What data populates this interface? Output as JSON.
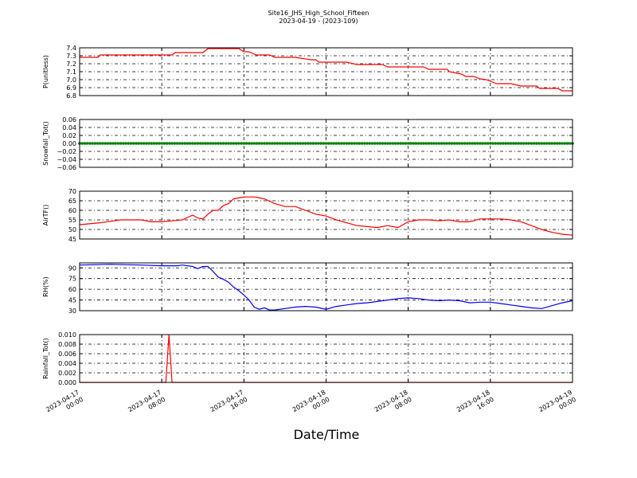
{
  "title_line1": "Site16_JHS_High_School_Fifteen",
  "title_line2": "2023-04-19 - (2023-109)",
  "xlabel": "Date/Time",
  "x_ticks": [
    [
      "2023-04-17",
      "00:00"
    ],
    [
      "2023-04-17",
      "08:00"
    ],
    [
      "2023-04-17",
      "16:00"
    ],
    [
      "2023-04-18",
      "00:00"
    ],
    [
      "2023-04-18",
      "08:00"
    ],
    [
      "2023-04-18",
      "16:00"
    ],
    [
      "2023-04-19",
      "00:00"
    ]
  ],
  "chart_data": [
    {
      "type": "line",
      "ylabel": "P(unitless)",
      "ylim": [
        6.8,
        7.4
      ],
      "yticks": [
        "7.4",
        "7.3",
        "7.2",
        "7.1",
        "7.0",
        "6.9",
        "6.8"
      ],
      "grid": true,
      "color": "#ff0000",
      "x_hours": [
        0,
        1.8,
        2,
        9,
        9.3,
        12,
        12.5,
        15.5,
        16,
        16.5,
        17.2,
        18.5,
        19,
        21,
        22.5,
        22.7,
        23,
        23.3,
        26,
        27,
        29.5,
        30,
        33.5,
        34,
        35.8,
        36,
        37.2,
        37.6,
        38.4,
        39,
        39.6,
        40.2,
        40.6,
        42,
        43,
        44.5,
        44.8,
        46.6,
        47,
        48
      ],
      "values": [
        7.28,
        7.28,
        7.31,
        7.31,
        7.34,
        7.34,
        7.39,
        7.39,
        7.35,
        7.35,
        7.31,
        7.31,
        7.28,
        7.28,
        7.25,
        7.25,
        7.25,
        7.22,
        7.22,
        7.19,
        7.19,
        7.16,
        7.16,
        7.13,
        7.13,
        7.1,
        7.07,
        7.04,
        7.04,
        7.01,
        7.0,
        6.97,
        6.95,
        6.95,
        6.92,
        6.92,
        6.89,
        6.89,
        6.86,
        6.86
      ]
    },
    {
      "type": "scatter",
      "ylabel": "Snowfall_Tot()",
      "ylim": [
        -0.06,
        0.06
      ],
      "yticks": [
        "0.06",
        "0.04",
        "0.02",
        "0.00",
        "−0.02",
        "−0.04",
        "−0.06"
      ],
      "grid": true,
      "color": "#008000",
      "value": 0.0,
      "x_range_hours": [
        0,
        48
      ]
    },
    {
      "type": "line",
      "ylabel": "AirTF()",
      "ylim": [
        45,
        70
      ],
      "yticks": [
        "70",
        "65",
        "60",
        "55",
        "50",
        "45"
      ],
      "grid": true,
      "color": "#ff0000",
      "x_hours": [
        0,
        2,
        4,
        6,
        7,
        8,
        9,
        10,
        11,
        11.5,
        12,
        12.5,
        13,
        13.5,
        14,
        14.5,
        15,
        15.5,
        16,
        16.5,
        17,
        17.5,
        18,
        19,
        20,
        21,
        22,
        23,
        24,
        25,
        26,
        27,
        28,
        29,
        30,
        31,
        32,
        33,
        34,
        35,
        36,
        37,
        38,
        39,
        40,
        41,
        42,
        43,
        44,
        45,
        46,
        47,
        48
      ],
      "values": [
        52.5,
        53.5,
        55,
        55,
        54,
        54,
        54.5,
        55,
        57.5,
        56,
        55.5,
        58,
        60,
        60,
        62.5,
        63.5,
        66,
        66.5,
        67,
        67,
        67,
        66.5,
        66,
        63.5,
        62,
        62,
        60,
        58,
        57,
        55,
        53.5,
        52,
        51.5,
        51,
        52,
        51,
        54,
        55,
        55,
        54.5,
        55,
        54,
        54,
        55.5,
        55.5,
        55.5,
        55,
        54,
        52,
        50,
        48.5,
        47.5,
        47
      ]
    },
    {
      "type": "line",
      "ylabel": "RH(%)",
      "ylim": [
        30,
        97
      ],
      "yticks": [
        "90",
        "75",
        "60",
        "45",
        "30"
      ],
      "grid": true,
      "color": "#0000ff",
      "x_hours": [
        0,
        3,
        6,
        8,
        9,
        9.5,
        10,
        11,
        11.5,
        12,
        12.5,
        13,
        13.5,
        14,
        14.5,
        15,
        15.5,
        16,
        16.5,
        17,
        17.5,
        18,
        18.5,
        19,
        20,
        21,
        22,
        23,
        24,
        25,
        26,
        27,
        28,
        29,
        30,
        31,
        32,
        33,
        34,
        35,
        36,
        37,
        38,
        39,
        40,
        41,
        42,
        43,
        44,
        45,
        46,
        47,
        48
      ],
      "values": [
        94,
        95,
        94,
        93,
        93,
        93,
        94,
        92,
        89,
        92,
        92,
        85,
        77,
        74,
        70,
        63,
        58,
        52,
        45,
        35,
        32,
        34,
        31,
        31,
        33,
        35,
        36,
        35,
        32,
        36,
        38,
        40,
        41,
        43,
        45,
        47,
        48,
        47,
        45,
        44,
        45,
        44,
        41,
        42,
        42,
        40,
        38,
        36,
        34,
        33,
        37,
        41,
        44
      ]
    },
    {
      "type": "line",
      "ylabel": "Rainfall_Tot()",
      "ylim": [
        0.0,
        0.01
      ],
      "yticks": [
        "0.010",
        "0.008",
        "0.006",
        "0.004",
        "0.002",
        "0.000"
      ],
      "grid": true,
      "color": "#ff0000",
      "x_hours": [
        0,
        8.4,
        8.7,
        9.0,
        48
      ],
      "values": [
        0.0,
        0.0,
        0.01,
        0.0,
        0.0
      ]
    }
  ]
}
